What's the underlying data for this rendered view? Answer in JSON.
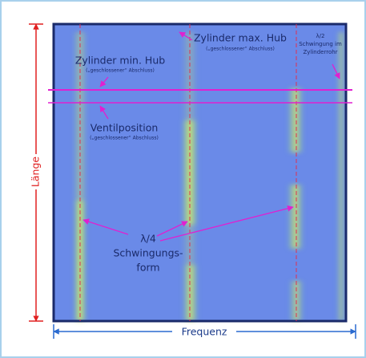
{
  "annotations": {
    "max_stroke": {
      "title": "Zylinder max. Hub",
      "subtitle": "(„geschlossener“ Abschluss)"
    },
    "min_stroke": {
      "title": "Zylinder min. Hub",
      "subtitle": "(„geschlossener“ Abschluss)"
    },
    "valve": {
      "title": "Ventilposition",
      "subtitle": "(„geschlossener“ Abschluss)"
    },
    "half_wave": {
      "lines": [
        "λ/2",
        "Schwingung im",
        "Zylinderrohr"
      ]
    },
    "quarter_wave": {
      "lines": [
        "λ/4",
        "Schwingungs-",
        "form"
      ]
    }
  },
  "axes": {
    "vertical": "Länge",
    "horizontal": "Frequenz"
  }
}
